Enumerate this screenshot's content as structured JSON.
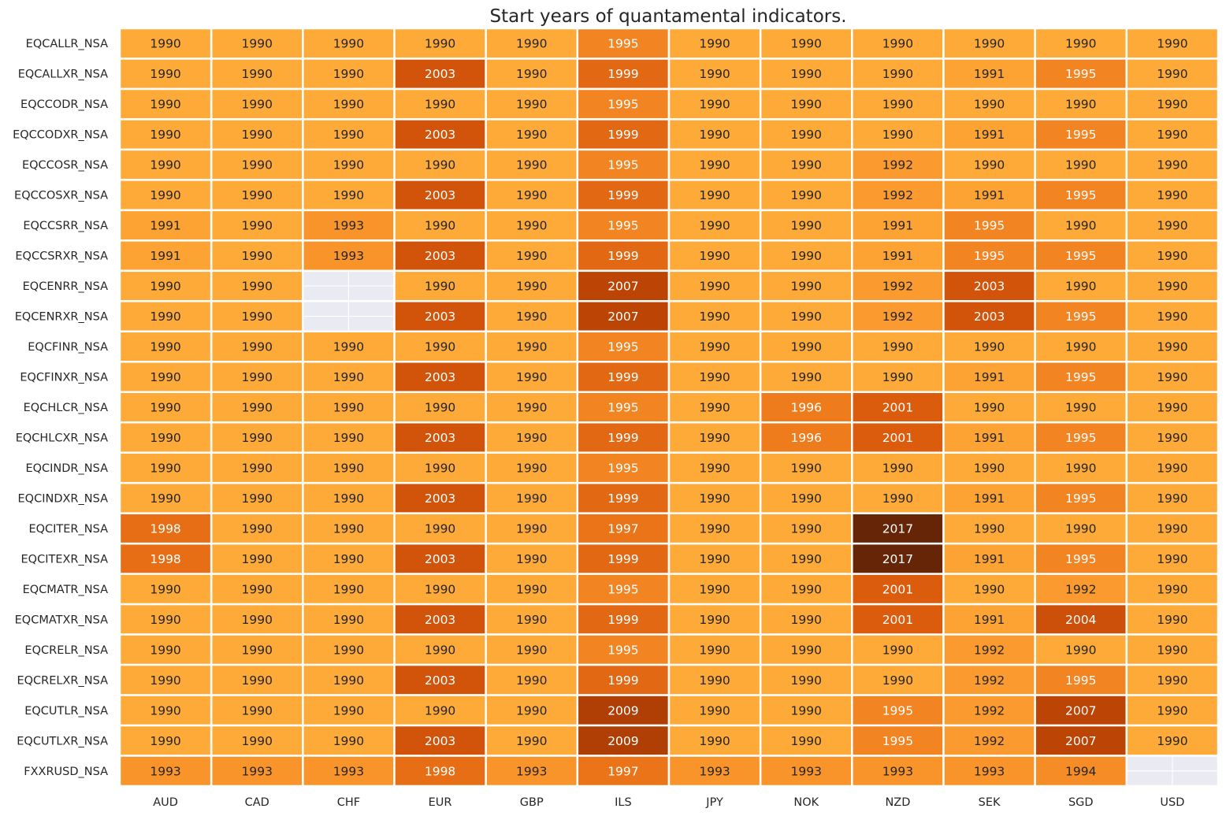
{
  "chart_data": {
    "type": "heatmap",
    "title": "Start years of quantamental indicators.",
    "xlabel": "",
    "ylabel": "",
    "columns": [
      "AUD",
      "CAD",
      "CHF",
      "EUR",
      "GBP",
      "ILS",
      "JPY",
      "NOK",
      "NZD",
      "SEK",
      "SGD",
      "USD"
    ],
    "rows": [
      "EQCALLR_NSA",
      "EQCALLXR_NSA",
      "EQCCODR_NSA",
      "EQCCODXR_NSA",
      "EQCCOSR_NSA",
      "EQCCOSXR_NSA",
      "EQCCSRR_NSA",
      "EQCCSRXR_NSA",
      "EQCENRR_NSA",
      "EQCENRXR_NSA",
      "EQCFINR_NSA",
      "EQCFINXR_NSA",
      "EQCHLCR_NSA",
      "EQCHLCXR_NSA",
      "EQCINDR_NSA",
      "EQCINDXR_NSA",
      "EQCITER_NSA",
      "EQCITEXR_NSA",
      "EQCMATR_NSA",
      "EQCMATXR_NSA",
      "EQCRELR_NSA",
      "EQCRELXR_NSA",
      "EQCUTLR_NSA",
      "EQCUTLXR_NSA",
      "FXXRUSD_NSA"
    ],
    "values": [
      [
        1990,
        1990,
        1990,
        1990,
        1990,
        1995,
        1990,
        1990,
        1990,
        1990,
        1990,
        1990
      ],
      [
        1990,
        1990,
        1990,
        2003,
        1990,
        1999,
        1990,
        1990,
        1990,
        1991,
        1995,
        1990
      ],
      [
        1990,
        1990,
        1990,
        1990,
        1990,
        1995,
        1990,
        1990,
        1990,
        1990,
        1990,
        1990
      ],
      [
        1990,
        1990,
        1990,
        2003,
        1990,
        1999,
        1990,
        1990,
        1990,
        1991,
        1995,
        1990
      ],
      [
        1990,
        1990,
        1990,
        1990,
        1990,
        1995,
        1990,
        1990,
        1992,
        1990,
        1990,
        1990
      ],
      [
        1990,
        1990,
        1990,
        2003,
        1990,
        1999,
        1990,
        1990,
        1992,
        1991,
        1995,
        1990
      ],
      [
        1991,
        1990,
        1993,
        1990,
        1990,
        1995,
        1990,
        1990,
        1991,
        1995,
        1990,
        1990
      ],
      [
        1991,
        1990,
        1993,
        2003,
        1990,
        1999,
        1990,
        1990,
        1991,
        1995,
        1995,
        1990
      ],
      [
        1990,
        1990,
        null,
        1990,
        1990,
        2007,
        1990,
        1990,
        1992,
        2003,
        1990,
        1990
      ],
      [
        1990,
        1990,
        null,
        2003,
        1990,
        2007,
        1990,
        1990,
        1992,
        2003,
        1995,
        1990
      ],
      [
        1990,
        1990,
        1990,
        1990,
        1990,
        1995,
        1990,
        1990,
        1990,
        1990,
        1990,
        1990
      ],
      [
        1990,
        1990,
        1990,
        2003,
        1990,
        1999,
        1990,
        1990,
        1990,
        1991,
        1995,
        1990
      ],
      [
        1990,
        1990,
        1990,
        1990,
        1990,
        1995,
        1990,
        1996,
        2001,
        1990,
        1990,
        1990
      ],
      [
        1990,
        1990,
        1990,
        2003,
        1990,
        1999,
        1990,
        1996,
        2001,
        1991,
        1995,
        1990
      ],
      [
        1990,
        1990,
        1990,
        1990,
        1990,
        1995,
        1990,
        1990,
        1990,
        1990,
        1990,
        1990
      ],
      [
        1990,
        1990,
        1990,
        2003,
        1990,
        1999,
        1990,
        1990,
        1990,
        1991,
        1995,
        1990
      ],
      [
        1998,
        1990,
        1990,
        1990,
        1990,
        1997,
        1990,
        1990,
        2017,
        1990,
        1990,
        1990
      ],
      [
        1998,
        1990,
        1990,
        2003,
        1990,
        1999,
        1990,
        1990,
        2017,
        1991,
        1995,
        1990
      ],
      [
        1990,
        1990,
        1990,
        1990,
        1990,
        1995,
        1990,
        1990,
        2001,
        1990,
        1992,
        1990
      ],
      [
        1990,
        1990,
        1990,
        2003,
        1990,
        1999,
        1990,
        1990,
        2001,
        1991,
        2004,
        1990
      ],
      [
        1990,
        1990,
        1990,
        1990,
        1990,
        1995,
        1990,
        1990,
        1990,
        1992,
        1990,
        1990
      ],
      [
        1990,
        1990,
        1990,
        2003,
        1990,
        1999,
        1990,
        1990,
        1990,
        1992,
        1995,
        1990
      ],
      [
        1990,
        1990,
        1990,
        1990,
        1990,
        2009,
        1990,
        1990,
        1995,
        1992,
        2007,
        1990
      ],
      [
        1990,
        1990,
        1990,
        2003,
        1990,
        2009,
        1990,
        1990,
        1995,
        1992,
        2007,
        1990
      ],
      [
        1993,
        1993,
        1993,
        1998,
        1993,
        1997,
        1993,
        1993,
        1993,
        1993,
        1994,
        null
      ]
    ],
    "color_range": [
      1990,
      2017
    ],
    "colormap": "YlOrBr",
    "missing_color": "#eaeaf2",
    "grid_color": "#ffffff"
  }
}
